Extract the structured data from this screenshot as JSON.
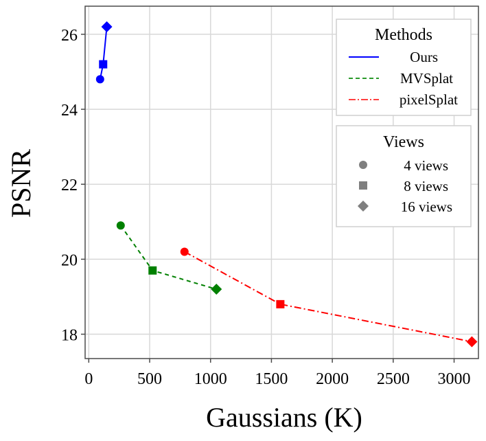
{
  "chart_data": {
    "type": "line",
    "xlabel": "Gaussians (K)",
    "ylabel": "PSNR",
    "xlim": [
      -30,
      3200
    ],
    "ylim": [
      17.35,
      26.75
    ],
    "xticks": [
      0,
      500,
      1000,
      1500,
      2000,
      2500,
      3000
    ],
    "yticks": [
      18,
      20,
      22,
      24,
      26
    ],
    "x_tick_labels": [
      "0",
      "500",
      "1000",
      "1500",
      "2000",
      "2500",
      "3000"
    ],
    "y_tick_labels": [
      "18",
      "20",
      "22",
      "24",
      "26"
    ],
    "grid": true,
    "series": [
      {
        "name": "Ours",
        "color": "#0000ff",
        "line_style": "solid",
        "points": [
          {
            "view": "4 views",
            "x": 93,
            "y": 24.8
          },
          {
            "view": "8 views",
            "x": 118,
            "y": 25.2
          },
          {
            "view": "16 views",
            "x": 148,
            "y": 26.2
          }
        ]
      },
      {
        "name": "MVSplat",
        "color": "#008000",
        "line_style": "dashed",
        "points": [
          {
            "view": "4 views",
            "x": 262,
            "y": 20.9
          },
          {
            "view": "8 views",
            "x": 524,
            "y": 19.7
          },
          {
            "view": "16 views",
            "x": 1048,
            "y": 19.2
          }
        ]
      },
      {
        "name": "pixelSplat",
        "color": "#ff0000",
        "line_style": "dashdot",
        "points": [
          {
            "view": "4 views",
            "x": 786,
            "y": 20.2
          },
          {
            "view": "8 views",
            "x": 1573,
            "y": 18.8
          },
          {
            "view": "16 views",
            "x": 3146,
            "y": 17.8
          }
        ]
      }
    ],
    "legends": [
      {
        "title": "Methods",
        "entries": [
          "Ours",
          "MVSplat",
          "pixelSplat"
        ],
        "placement": "top-right"
      },
      {
        "title": "Views",
        "entries": [
          {
            "label": "4 views",
            "marker": "circle"
          },
          {
            "label": "8 views",
            "marker": "square"
          },
          {
            "label": "16 views",
            "marker": "diamond"
          }
        ],
        "placement": "upper-right",
        "marker_color": "#808080"
      }
    ]
  }
}
